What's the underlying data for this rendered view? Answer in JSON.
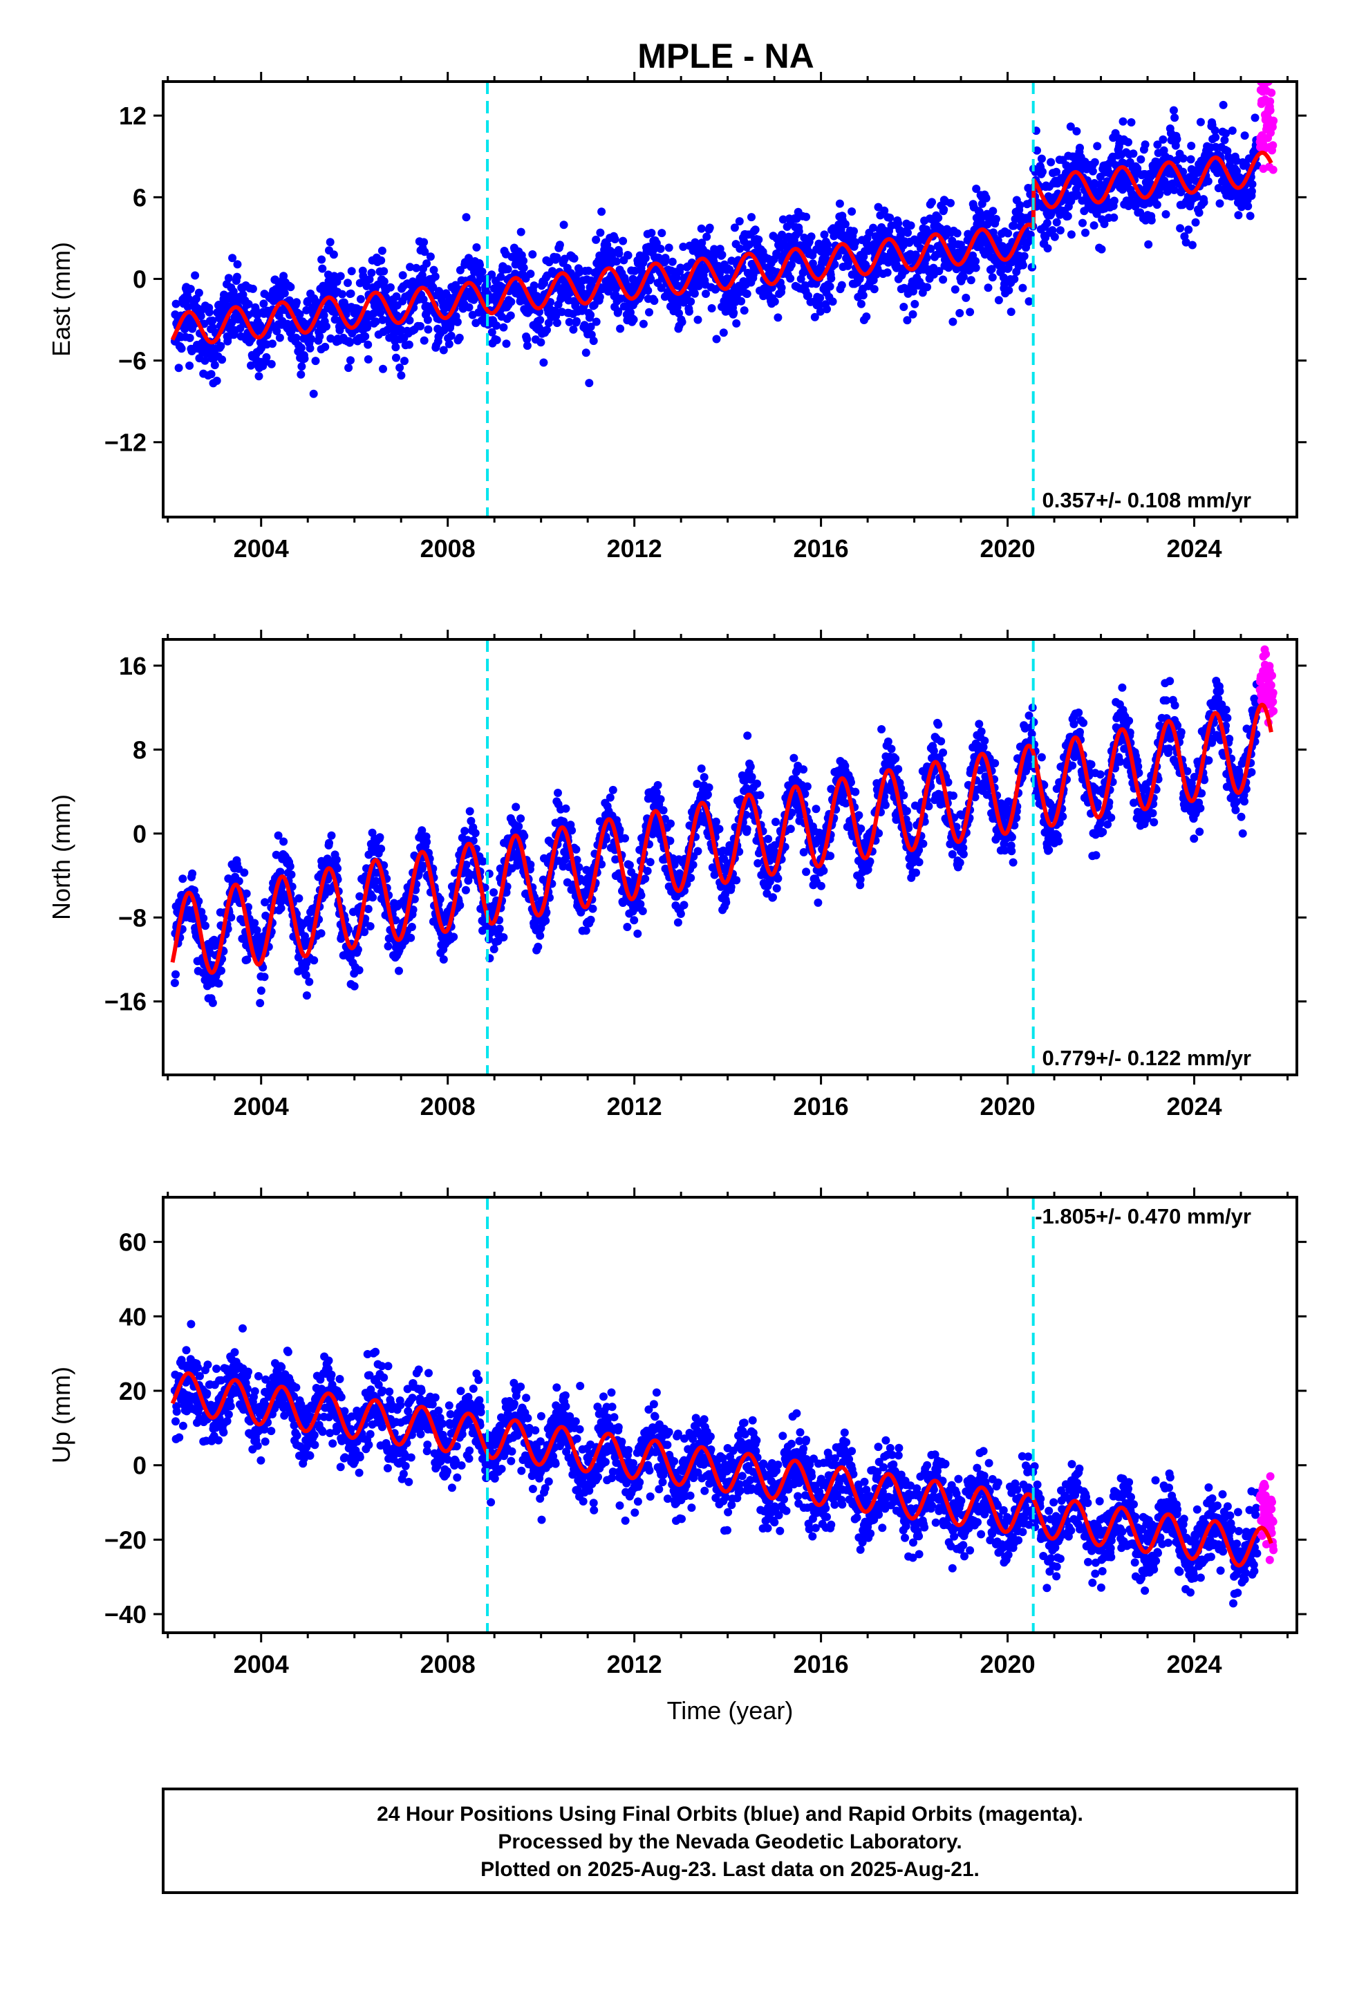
{
  "title": "MPLE - NA",
  "xlabel": "Time (year)",
  "footer": {
    "line1": "24 Hour Positions Using Final Orbits (blue) and Rapid Orbits (magenta).",
    "line2": "Processed by the Nevada Geodetic Laboratory.",
    "line3": "Plotted on 2025-Aug-23. Last data on 2025-Aug-21."
  },
  "colors": {
    "final_orbits": "#0000ff",
    "rapid_orbits": "#ff00ff",
    "model": "#ff0000",
    "events": "#00e5ee"
  },
  "chart_data": [
    {
      "type": "scatter",
      "component": "east",
      "ylabel": "East (mm)",
      "rate_label": "0.357+/- 0.108 mm/yr",
      "xlim": [
        2001.9,
        2026.2
      ],
      "ylim": [
        -17.5,
        14.5
      ],
      "xticks": [
        2004,
        2008,
        2012,
        2016,
        2020,
        2024
      ],
      "yticks": [
        -12,
        -6,
        0,
        6,
        12
      ],
      "event_lines": [
        2008.85,
        2020.55
      ],
      "model": {
        "trend_mm_per_yr": 0.357,
        "offset_at_2002": -3.8,
        "annual_amplitude_mm": 1.2,
        "steps": [
          {
            "year": 2020.55,
            "size_mm": 3.5
          }
        ]
      },
      "scatter_sd_mm": 1.5,
      "rapid_orbit_range": [
        2025.35,
        2025.64
      ]
    },
    {
      "type": "scatter",
      "component": "north",
      "ylabel": "North (mm)",
      "rate_label": "0.779+/- 0.122 mm/yr",
      "xlim": [
        2001.9,
        2026.2
      ],
      "ylim": [
        -23,
        18.5
      ],
      "xticks": [
        2004,
        2008,
        2012,
        2016,
        2020,
        2024
      ],
      "yticks": [
        -16,
        -8,
        0,
        8,
        16
      ],
      "event_lines": [
        2008.85,
        2020.55
      ],
      "model": {
        "trend_mm_per_yr": 0.779,
        "offset_at_2002": -10.0,
        "annual_amplitude_mm": 4.0,
        "steps": []
      },
      "scatter_sd_mm": 1.6,
      "rapid_orbit_range": [
        2025.35,
        2025.64
      ]
    },
    {
      "type": "scatter",
      "component": "up",
      "ylabel": "Up (mm)",
      "rate_label": "-1.805+/- 0.470 mm/yr",
      "xlim": [
        2001.9,
        2026.2
      ],
      "ylim": [
        -45,
        72
      ],
      "xticks": [
        2004,
        2008,
        2012,
        2016,
        2020,
        2024
      ],
      "yticks": [
        -40,
        -20,
        0,
        20,
        40,
        60
      ],
      "event_lines": [
        2008.85,
        2020.55
      ],
      "model": {
        "trend_mm_per_yr": -1.805,
        "offset_at_2002": 20.0,
        "annual_amplitude_mm": 5.5,
        "steps": []
      },
      "scatter_sd_mm": 5.0,
      "rapid_orbit_range": [
        2025.35,
        2025.64
      ]
    }
  ]
}
